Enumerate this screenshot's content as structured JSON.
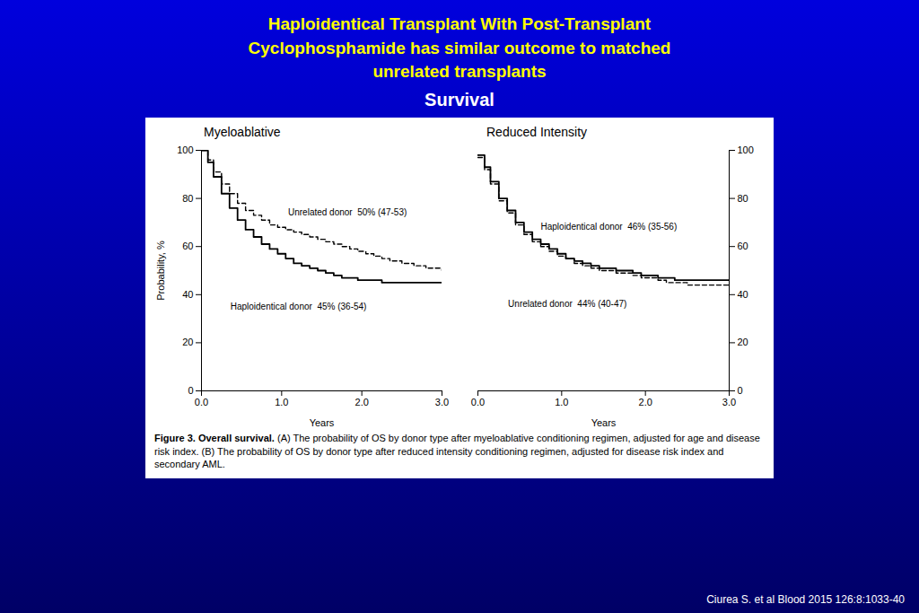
{
  "title": "Haploidentical Transplant With Post-Transplant\nCyclophosphamide has similar outcome to matched\nunrelated transplants",
  "subtitle": "Survival",
  "annotations": [
    "Figure 3. Overall survival.",
    " (A) The probability of OS by donor type after myeloablative conditioning regimen, adjusted for age and disease risk index. (B) The probability of OS by donor type after reduced intensity conditioning regimen, adjusted for disease risk index and secondary AML.",
    "Ciurea S. et al Blood 2015 126:8:1033-40"
  ],
  "chart_data": [
    {
      "type": "line",
      "title": "Myeloablative",
      "xlabel": "Years",
      "ylabel": "Probability, %",
      "xlim": [
        0,
        3
      ],
      "ylim": [
        0,
        100
      ],
      "xticks": [
        0,
        1,
        2,
        3
      ],
      "yticks": [
        0,
        20,
        40,
        60,
        80,
        100
      ],
      "x": [
        0,
        0.08,
        0.15,
        0.25,
        0.35,
        0.45,
        0.55,
        0.65,
        0.75,
        0.85,
        0.95,
        1.05,
        1.15,
        1.25,
        1.35,
        1.45,
        1.55,
        1.65,
        1.75,
        1.85,
        1.95,
        2.05,
        2.15,
        2.25,
        2.35,
        2.5,
        2.65,
        2.8,
        3.0
      ],
      "series": [
        {
          "name": "Haploidentical donor  45% (36-54)",
          "color": "black",
          "line_style": "solid",
          "values": [
            100,
            95,
            89,
            82,
            76,
            71,
            67,
            64,
            61,
            59,
            57,
            55,
            53,
            52,
            51,
            50,
            49,
            48,
            47,
            47,
            46,
            46,
            46,
            45,
            45,
            45,
            45,
            45,
            45
          ]
        },
        {
          "name": "Unrelated donor  50% (47-53)",
          "color": "black",
          "line_style": "dashed",
          "values": [
            100,
            96,
            91,
            86,
            82,
            78,
            75,
            73,
            71,
            69,
            68,
            67,
            66,
            65,
            64,
            63,
            62,
            61,
            60,
            59,
            58,
            57,
            56,
            55,
            54,
            53,
            52,
            51,
            50
          ]
        }
      ]
    },
    {
      "type": "line",
      "title": "Reduced Intensity",
      "xlabel": "Years",
      "xlim": [
        0,
        3
      ],
      "ylim": [
        0,
        100
      ],
      "xticks": [
        0,
        1,
        2,
        3
      ],
      "yticks": [
        0,
        20,
        40,
        60,
        80,
        100
      ],
      "x": [
        0,
        0.08,
        0.15,
        0.25,
        0.35,
        0.45,
        0.55,
        0.65,
        0.75,
        0.85,
        0.95,
        1.05,
        1.15,
        1.25,
        1.35,
        1.45,
        1.55,
        1.65,
        1.75,
        1.85,
        1.95,
        2.05,
        2.15,
        2.25,
        2.35,
        2.5,
        2.65,
        2.8,
        3.0
      ],
      "series": [
        {
          "name": "Haploidentical donor  46% (35-56)",
          "color": "black",
          "line_style": "solid",
          "values": [
            98,
            93,
            87,
            80,
            75,
            70,
            66,
            63,
            61,
            59,
            57,
            55,
            54,
            53,
            52,
            51,
            51,
            50,
            50,
            49,
            48,
            48,
            47,
            47,
            46,
            46,
            46,
            46,
            46
          ]
        },
        {
          "name": "Unrelated donor  44% (40-47)",
          "color": "black",
          "line_style": "dashed",
          "values": [
            97,
            92,
            86,
            79,
            74,
            69,
            65,
            62,
            60,
            58,
            56,
            55,
            53,
            52,
            51,
            50,
            50,
            49,
            49,
            48,
            47,
            47,
            46,
            45,
            45,
            44,
            44,
            44,
            44
          ]
        }
      ]
    }
  ]
}
